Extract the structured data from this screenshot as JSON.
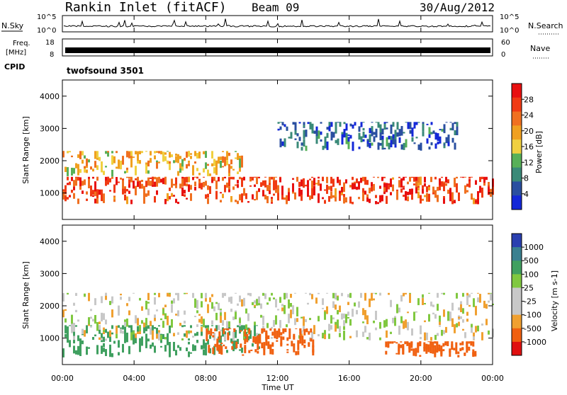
{
  "header": {
    "site": "Rankin Inlet (fitACF)",
    "beam": "Beam 09",
    "date": "30/Aug/2012"
  },
  "top_panels": {
    "nsky_label": "N.Sky",
    "nsky_ticks": [
      "10^5",
      "10^0"
    ],
    "nsearch_label": "N.Search",
    "nsearch_ticks": [
      "10^5",
      "10^0"
    ],
    "freq_label": "Freq.",
    "freq_unit": "[MHz]",
    "freq_ticks": [
      "18",
      "8"
    ],
    "nave_label": "Nave",
    "nave_ticks": [
      "60",
      "0"
    ],
    "cpid_label": "CPID",
    "cpid_value": "twofsound 3501"
  },
  "colors": {
    "power": [
      "#1428d8",
      "#2a4fa0",
      "#3a8a78",
      "#58b058",
      "#f0d040",
      "#f0a020",
      "#f07020",
      "#f03a14",
      "#e81010"
    ],
    "velocity": [
      "#e01010",
      "#f06010",
      "#f0a030",
      "#c8c8c8",
      "#c8c8c8",
      "#80c840",
      "#40a060",
      "#3a8090",
      "#2a40b0"
    ]
  },
  "chart_data": [
    {
      "type": "heatmap",
      "title": "Power",
      "x_quantity": "Time UT",
      "xlabel": "Time UT",
      "ylabel": "Slant Range [km]",
      "xlim": [
        "00:00",
        "00:00"
      ],
      "ylim": [
        180,
        4500
      ],
      "x_ticks": [
        "00:00",
        "04:00",
        "08:00",
        "12:00",
        "16:00",
        "20:00",
        "00:00"
      ],
      "y_ticks": [
        1000,
        2000,
        3000,
        4000
      ],
      "colorbar": {
        "label": "Power [dB]",
        "ticks": [
          "4",
          "8",
          "12",
          "16",
          "20",
          "24",
          "28"
        ],
        "range": [
          0,
          30
        ]
      },
      "bands": [
        {
          "t_start": 0,
          "t_end": 24,
          "range_min": 650,
          "range_max": 1500,
          "level_db": 28
        },
        {
          "t_start": 0,
          "t_end": 10,
          "range_min": 1500,
          "range_max": 2300,
          "level_db": 20
        },
        {
          "t_start": 12,
          "t_end": 22,
          "range_min": 2300,
          "range_max": 3200,
          "level_db": 8
        }
      ]
    },
    {
      "type": "heatmap",
      "title": "Velocity",
      "xlabel": "Time UT",
      "ylabel": "Slant Range [km]",
      "xlim": [
        "00:00",
        "00:00"
      ],
      "ylim": [
        180,
        4500
      ],
      "x_ticks": [
        "00:00",
        "04:00",
        "08:00",
        "12:00",
        "16:00",
        "20:00",
        "00:00"
      ],
      "y_ticks": [
        1000,
        2000,
        3000,
        4000
      ],
      "colorbar": {
        "label": "Velocity [m s-1]",
        "ticks": [
          "1000",
          "500",
          "100",
          "25",
          "-25",
          "-100",
          "-500",
          "-1000"
        ]
      },
      "bands": [
        {
          "t_start": 0,
          "t_end": 11,
          "range_min": 400,
          "range_max": 1400,
          "velocity": 300
        },
        {
          "t_start": 0,
          "t_end": 24,
          "range_min": 900,
          "range_max": 2400,
          "velocity": 0
        },
        {
          "t_start": 8,
          "t_end": 14,
          "range_min": 450,
          "range_max": 1300,
          "velocity": -300
        },
        {
          "t_start": 18,
          "t_end": 23,
          "range_min": 400,
          "range_max": 900,
          "velocity": -200
        }
      ]
    }
  ]
}
